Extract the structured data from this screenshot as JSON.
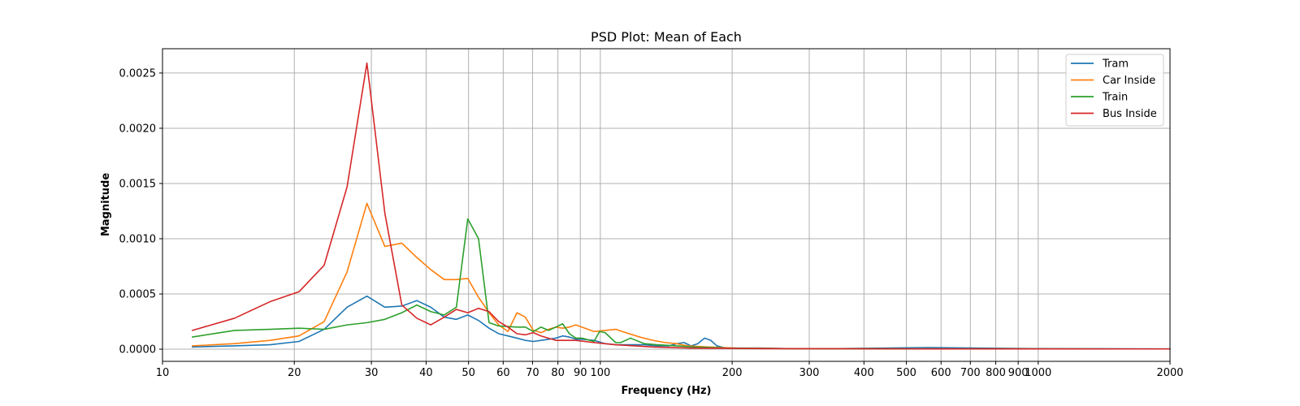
{
  "chart_data": {
    "type": "line",
    "title": "PSD Plot: Mean of Each",
    "xlabel": "Frequency (Hz)",
    "ylabel": "Magnitude",
    "xscale": "log",
    "xlim": [
      10,
      2000
    ],
    "ylim": [
      -0.00011,
      0.00272
    ],
    "grid": true,
    "legend_position": "top-right",
    "x_tick_labels": [
      {
        "value": 10,
        "label": "10"
      },
      {
        "value": 20,
        "label": "20"
      },
      {
        "value": 30,
        "label": "30"
      },
      {
        "value": 40,
        "label": "40"
      },
      {
        "value": 50,
        "label": "50"
      },
      {
        "value": 60,
        "label": "60"
      },
      {
        "value": 70,
        "label": "70"
      },
      {
        "value": 80,
        "label": "80"
      },
      {
        "value": 90,
        "label": "90"
      },
      {
        "value": 100,
        "label": "100"
      },
      {
        "value": 200,
        "label": "200"
      },
      {
        "value": 300,
        "label": "300"
      },
      {
        "value": 400,
        "label": "400"
      },
      {
        "value": 500,
        "label": "500"
      },
      {
        "value": 600,
        "label": "600"
      },
      {
        "value": 700,
        "label": "700"
      },
      {
        "value": 800,
        "label": "800"
      },
      {
        "value": 900,
        "label": "900"
      },
      {
        "value": 1000,
        "label": "1000"
      },
      {
        "value": 2000,
        "label": "2000"
      }
    ],
    "y_tick_labels": [
      {
        "value": 0.0,
        "label": "0.0000"
      },
      {
        "value": 0.0005,
        "label": "0.0005"
      },
      {
        "value": 0.001,
        "label": "0.0010"
      },
      {
        "value": 0.0015,
        "label": "0.0015"
      },
      {
        "value": 0.002,
        "label": "0.0020"
      },
      {
        "value": 0.0025,
        "label": "0.0025"
      }
    ],
    "series": [
      {
        "name": "Tram",
        "color": "#1f77b4",
        "points": [
          [
            11.7,
            2e-05
          ],
          [
            14.6,
            3e-05
          ],
          [
            17.6,
            4e-05
          ],
          [
            20.5,
            7e-05
          ],
          [
            23.4,
            0.00018
          ],
          [
            26.4,
            0.00038
          ],
          [
            29.3,
            0.00048
          ],
          [
            32.2,
            0.00038
          ],
          [
            35.2,
            0.00039
          ],
          [
            38.1,
            0.00044
          ],
          [
            41.0,
            0.00038
          ],
          [
            44.0,
            0.00029
          ],
          [
            46.9,
            0.00027
          ],
          [
            49.8,
            0.00031
          ],
          [
            52.7,
            0.00026
          ],
          [
            55.7,
            0.00019
          ],
          [
            58.6,
            0.00014
          ],
          [
            61.5,
            0.00012
          ],
          [
            64.5,
            0.0001
          ],
          [
            67.4,
            8e-05
          ],
          [
            70.3,
            7e-05
          ],
          [
            73.2,
            8e-05
          ],
          [
            76.2,
            9e-05
          ],
          [
            79.1,
            0.0001
          ],
          [
            82.0,
            0.00012
          ],
          [
            85.0,
            0.00011
          ],
          [
            87.9,
            9e-05
          ],
          [
            90.8,
            9e-05
          ],
          [
            96.7,
            8e-05
          ],
          [
            102.5,
            5e-05
          ],
          [
            108.4,
            4e-05
          ],
          [
            117.2,
            4e-05
          ],
          [
            126.0,
            4e-05
          ],
          [
            134.8,
            3e-05
          ],
          [
            143.6,
            3e-05
          ],
          [
            149.4,
            5e-05
          ],
          [
            155.3,
            6e-05
          ],
          [
            161.1,
            3e-05
          ],
          [
            167.0,
            5e-05
          ],
          [
            172.9,
            0.0001
          ],
          [
            178.7,
            8e-05
          ],
          [
            184.6,
            3e-05
          ],
          [
            193.4,
            1e-05
          ],
          [
            210.9,
            1e-05
          ],
          [
            234.4,
            1e-05
          ],
          [
            263.7,
            5e-06
          ],
          [
            351.6,
            5e-06
          ],
          [
            556.6,
            1.5e-05
          ],
          [
            1000,
            5e-06
          ],
          [
            2000,
            3e-06
          ]
        ]
      },
      {
        "name": "Car Inside",
        "color": "#ff7f0e",
        "points": [
          [
            11.7,
            3e-05
          ],
          [
            14.6,
            5e-05
          ],
          [
            17.6,
            8e-05
          ],
          [
            20.5,
            0.00012
          ],
          [
            23.4,
            0.00025
          ],
          [
            26.4,
            0.0007
          ],
          [
            29.3,
            0.00132
          ],
          [
            32.2,
            0.00093
          ],
          [
            35.2,
            0.00096
          ],
          [
            38.1,
            0.00083
          ],
          [
            41.0,
            0.00072
          ],
          [
            44.0,
            0.00063
          ],
          [
            46.9,
            0.00063
          ],
          [
            49.8,
            0.00064
          ],
          [
            52.7,
            0.00047
          ],
          [
            55.7,
            0.00033
          ],
          [
            58.6,
            0.00022
          ],
          [
            61.5,
            0.00016
          ],
          [
            64.5,
            0.00033
          ],
          [
            67.4,
            0.00029
          ],
          [
            70.3,
            0.00017
          ],
          [
            73.2,
            0.00015
          ],
          [
            76.2,
            0.00018
          ],
          [
            79.1,
            0.0002
          ],
          [
            82.0,
            0.00019
          ],
          [
            85.0,
            0.0002
          ],
          [
            87.9,
            0.00022
          ],
          [
            90.8,
            0.0002
          ],
          [
            96.7,
            0.00016
          ],
          [
            102.5,
            0.00017
          ],
          [
            108.4,
            0.00018
          ],
          [
            114.3,
            0.00015
          ],
          [
            123.0,
            0.00011
          ],
          [
            131.8,
            8e-05
          ],
          [
            140.6,
            6e-05
          ],
          [
            149.4,
            5e-05
          ],
          [
            158.2,
            3e-05
          ],
          [
            175.8,
            2e-05
          ],
          [
            205.1,
            1e-05
          ],
          [
            263.7,
            5e-06
          ],
          [
            500,
            3e-06
          ],
          [
            2000,
            2e-06
          ]
        ]
      },
      {
        "name": "Train",
        "color": "#2ca02c",
        "points": [
          [
            11.7,
            0.00011
          ],
          [
            14.6,
            0.00017
          ],
          [
            17.6,
            0.00018
          ],
          [
            20.5,
            0.00019
          ],
          [
            23.4,
            0.00018
          ],
          [
            26.4,
            0.00022
          ],
          [
            29.3,
            0.00024
          ],
          [
            32.2,
            0.00027
          ],
          [
            35.2,
            0.00033
          ],
          [
            38.1,
            0.0004
          ],
          [
            41.0,
            0.00034
          ],
          [
            44.0,
            0.00031
          ],
          [
            46.9,
            0.00038
          ],
          [
            49.8,
            0.00118
          ],
          [
            52.7,
            0.001
          ],
          [
            55.7,
            0.00024
          ],
          [
            58.6,
            0.00021
          ],
          [
            64.5,
            0.0002
          ],
          [
            67.4,
            0.0002
          ],
          [
            70.3,
            0.00016
          ],
          [
            73.2,
            0.0002
          ],
          [
            76.2,
            0.00017
          ],
          [
            79.1,
            0.0002
          ],
          [
            82.0,
            0.00023
          ],
          [
            85.0,
            0.00014
          ],
          [
            87.9,
            0.0001
          ],
          [
            90.8,
            0.0001
          ],
          [
            96.7,
            7e-05
          ],
          [
            99.6,
            0.00016
          ],
          [
            102.5,
            0.00015
          ],
          [
            108.4,
            6e-05
          ],
          [
            111.3,
            6e-05
          ],
          [
            117.2,
            0.0001
          ],
          [
            126.0,
            5e-05
          ],
          [
            134.8,
            4e-05
          ],
          [
            149.4,
            3e-05
          ],
          [
            164.1,
            2e-05
          ],
          [
            193.4,
            1e-05
          ],
          [
            263.7,
            5e-06
          ],
          [
            500,
            3e-06
          ],
          [
            2000,
            2e-06
          ]
        ]
      },
      {
        "name": "Bus Inside",
        "color": "#d62728",
        "points": [
          [
            11.7,
            0.00017
          ],
          [
            14.6,
            0.00028
          ],
          [
            17.6,
            0.00043
          ],
          [
            20.5,
            0.00052
          ],
          [
            23.4,
            0.00076
          ],
          [
            26.4,
            0.00147
          ],
          [
            29.3,
            0.00259
          ],
          [
            32.2,
            0.00123
          ],
          [
            35.2,
            0.0004
          ],
          [
            38.1,
            0.00028
          ],
          [
            41.0,
            0.00022
          ],
          [
            44.0,
            0.00029
          ],
          [
            46.9,
            0.00036
          ],
          [
            49.8,
            0.00033
          ],
          [
            52.7,
            0.00037
          ],
          [
            55.7,
            0.00034
          ],
          [
            58.6,
            0.00025
          ],
          [
            61.5,
            0.0002
          ],
          [
            64.5,
            0.00014
          ],
          [
            67.4,
            0.00013
          ],
          [
            70.3,
            0.00015
          ],
          [
            73.2,
            0.00012
          ],
          [
            79.1,
            8e-05
          ],
          [
            87.9,
            8e-05
          ],
          [
            96.7,
            6e-05
          ],
          [
            108.4,
            4e-05
          ],
          [
            131.8,
            2e-05
          ],
          [
            161.1,
            1e-05
          ],
          [
            234.4,
            5e-06
          ],
          [
            500,
            3e-06
          ],
          [
            2000,
            2e-06
          ]
        ]
      }
    ]
  }
}
